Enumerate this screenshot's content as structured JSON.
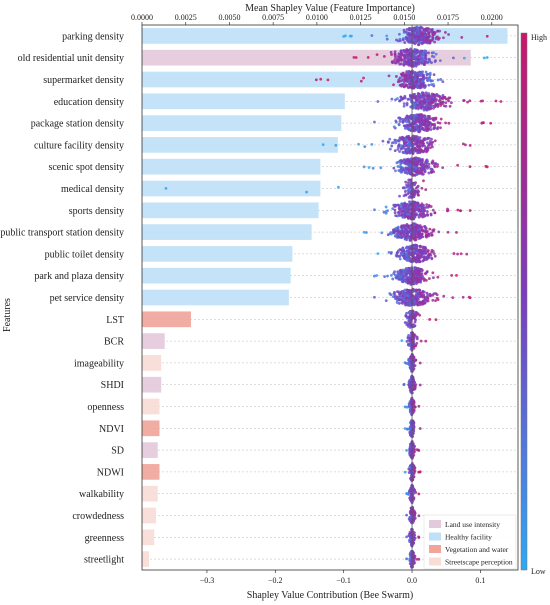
{
  "chart_data": {
    "type": "bar",
    "top_axis": {
      "label": "Mean Shapley Value (Feature Importance)",
      "ticks": [
        0.0,
        0.0025,
        0.005,
        0.0075,
        0.01,
        0.0125,
        0.015,
        0.0175,
        0.02
      ],
      "tick_labels": [
        "0.0000",
        "0.0025",
        "0.0050",
        "0.0075",
        "0.0100",
        "0.0125",
        "0.0150",
        "0.0175",
        "0.0200"
      ],
      "range": [
        0.0,
        0.0215
      ]
    },
    "bottom_axis": {
      "label": "Shapley Value Contribution (Bee Swarm)",
      "ticks": [
        -0.3,
        -0.2,
        -0.1,
        0.0,
        0.1
      ],
      "tick_labels": [
        "−0.3",
        "−0.2",
        "−0.1",
        "0.0",
        "0.1"
      ],
      "range": [
        -0.395,
        0.155
      ]
    },
    "ylabel": "Features",
    "features": [
      {
        "name": "parking density",
        "group": "Healthy facility",
        "mean_shap": 0.0209,
        "swarm_min": -0.1,
        "swarm_max": 0.11,
        "center": 0.01,
        "spread": 0.03
      },
      {
        "name": "old residential unit density",
        "group": "Land use intensity",
        "mean_shap": 0.0188,
        "swarm_min": -0.085,
        "swarm_max": 0.11,
        "center": 0.0,
        "spread": 0.03
      },
      {
        "name": "supermarket density",
        "group": "Healthy facility",
        "mean_shap": 0.0158,
        "swarm_min": -0.14,
        "swarm_max": 0.045,
        "center": 0.005,
        "spread": 0.025
      },
      {
        "name": "education density",
        "group": "Healthy facility",
        "mean_shap": 0.0116,
        "swarm_min": -0.05,
        "swarm_max": 0.13,
        "center": 0.02,
        "spread": 0.035
      },
      {
        "name": "package station density",
        "group": "Healthy facility",
        "mean_shap": 0.0114,
        "swarm_min": -0.055,
        "swarm_max": 0.115,
        "center": 0.01,
        "spread": 0.03
      },
      {
        "name": "culture facility density",
        "group": "Healthy facility",
        "mean_shap": 0.0112,
        "swarm_min": -0.13,
        "swarm_max": 0.085,
        "center": 0.0,
        "spread": 0.03
      },
      {
        "name": "scenic spot density",
        "group": "Healthy facility",
        "mean_shap": 0.0102,
        "swarm_min": -0.07,
        "swarm_max": 0.11,
        "center": 0.005,
        "spread": 0.03
      },
      {
        "name": "medical density",
        "group": "Healthy facility",
        "mean_shap": 0.0102,
        "swarm_min": -0.36,
        "swarm_max": 0.02,
        "center": 0.0,
        "spread": 0.015
      },
      {
        "name": "sports density",
        "group": "Healthy facility",
        "mean_shap": 0.0101,
        "swarm_min": -0.055,
        "swarm_max": 0.085,
        "center": 0.0,
        "spread": 0.03
      },
      {
        "name": "public transport station density",
        "group": "Healthy facility",
        "mean_shap": 0.0097,
        "swarm_min": -0.07,
        "swarm_max": 0.065,
        "center": 0.0,
        "spread": 0.03
      },
      {
        "name": "public toilet density",
        "group": "Healthy facility",
        "mean_shap": 0.0086,
        "swarm_min": -0.05,
        "swarm_max": 0.08,
        "center": 0.005,
        "spread": 0.025
      },
      {
        "name": "park and plaza density",
        "group": "Healthy facility",
        "mean_shap": 0.0085,
        "swarm_min": -0.055,
        "swarm_max": 0.065,
        "center": 0.0,
        "spread": 0.025
      },
      {
        "name": "pet service density",
        "group": "Healthy facility",
        "mean_shap": 0.0084,
        "swarm_min": -0.055,
        "swarm_max": 0.085,
        "center": 0.0,
        "spread": 0.03
      },
      {
        "name": "LST",
        "group": "Vegetation and water",
        "mean_shap": 0.0028,
        "swarm_min": -0.01,
        "swarm_max": 0.035,
        "center": 0.0,
        "spread": 0.008
      },
      {
        "name": "BCR",
        "group": "Land use intensity",
        "mean_shap": 0.0013,
        "swarm_min": -0.015,
        "swarm_max": 0.02,
        "center": 0.0,
        "spread": 0.006
      },
      {
        "name": "imageability",
        "group": "Streetscape perception",
        "mean_shap": 0.0011,
        "swarm_min": -0.01,
        "swarm_max": 0.012,
        "center": 0.0,
        "spread": 0.005
      },
      {
        "name": "SHDI",
        "group": "Land use intensity",
        "mean_shap": 0.0011,
        "swarm_min": -0.012,
        "swarm_max": 0.012,
        "center": 0.0,
        "spread": 0.005
      },
      {
        "name": "openness",
        "group": "Streetscape perception",
        "mean_shap": 0.001,
        "swarm_min": -0.01,
        "swarm_max": 0.01,
        "center": 0.0,
        "spread": 0.004
      },
      {
        "name": "NDVI",
        "group": "Vegetation and water",
        "mean_shap": 0.001,
        "swarm_min": -0.01,
        "swarm_max": 0.012,
        "center": 0.0,
        "spread": 0.004
      },
      {
        "name": "SD",
        "group": "Land use intensity",
        "mean_shap": 0.0009,
        "swarm_min": -0.008,
        "swarm_max": 0.01,
        "center": 0.0,
        "spread": 0.004
      },
      {
        "name": "NDWI",
        "group": "Vegetation and water",
        "mean_shap": 0.001,
        "swarm_min": -0.01,
        "swarm_max": 0.012,
        "center": 0.0,
        "spread": 0.004
      },
      {
        "name": "walkability",
        "group": "Streetscape perception",
        "mean_shap": 0.0009,
        "swarm_min": -0.008,
        "swarm_max": 0.01,
        "center": 0.0,
        "spread": 0.004
      },
      {
        "name": "crowdedness",
        "group": "Streetscape perception",
        "mean_shap": 0.0008,
        "swarm_min": -0.008,
        "swarm_max": 0.01,
        "center": 0.0,
        "spread": 0.004
      },
      {
        "name": "greenness",
        "group": "Streetscape perception",
        "mean_shap": 0.0007,
        "swarm_min": -0.008,
        "swarm_max": 0.01,
        "center": 0.0,
        "spread": 0.004
      },
      {
        "name": "streetlight",
        "group": "Streetscape perception",
        "mean_shap": 0.0004,
        "swarm_min": -0.008,
        "swarm_max": 0.01,
        "center": 0.0,
        "spread": 0.004
      }
    ],
    "legend": {
      "placement": "bottom-right",
      "items": [
        {
          "label": "Land use intensity",
          "color": "#e3c9dc"
        },
        {
          "label": "Healthy facility",
          "color": "#bfe0f7"
        },
        {
          "label": "Vegetation and water",
          "color": "#f0a49a"
        },
        {
          "label": "Streetscape perception",
          "color": "#f8dcd6"
        }
      ]
    },
    "colorbar": {
      "high_label": "High",
      "low_label": "Low",
      "low_color": "#2ea8f5",
      "mid_color": "#7a3fc0",
      "high_color": "#c8186a"
    },
    "gridlines": true
  }
}
